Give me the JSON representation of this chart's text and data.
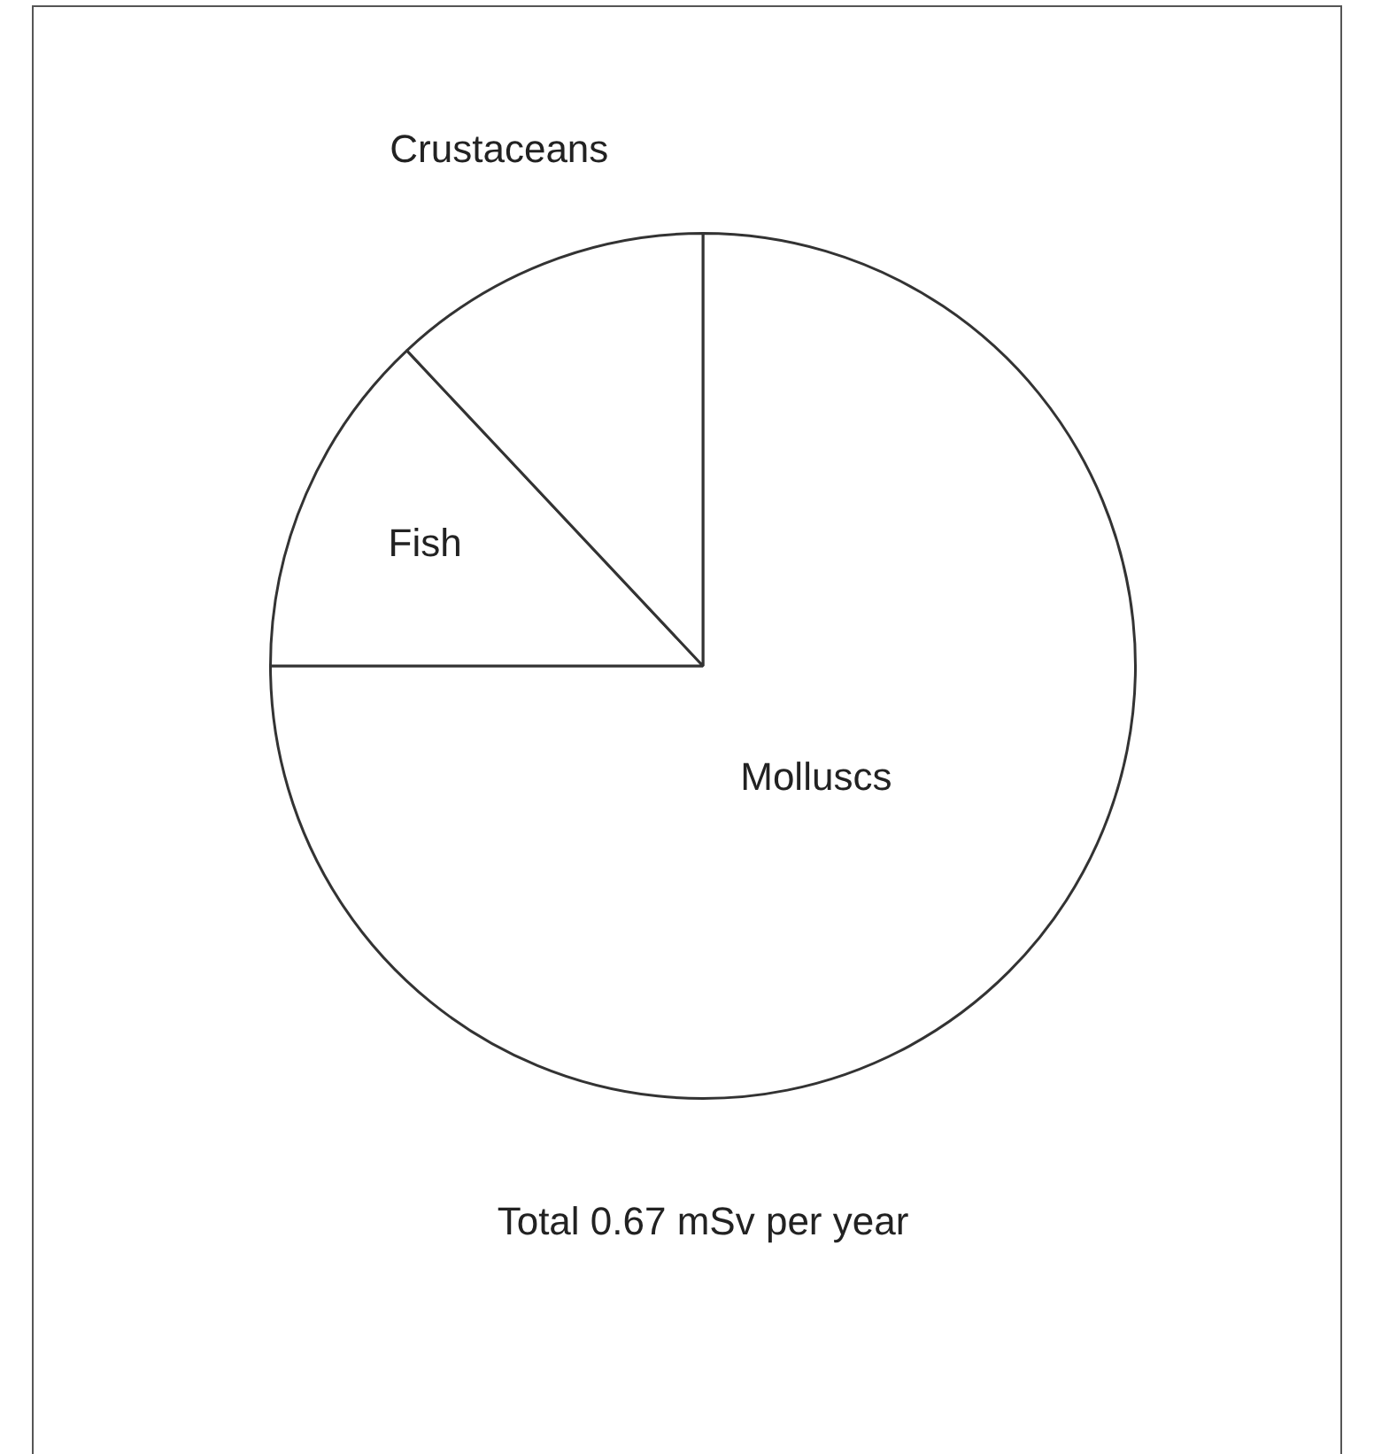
{
  "chart_data": {
    "type": "pie",
    "categories": [
      "Molluscs",
      "Fish",
      "Crustaceans"
    ],
    "values": [
      75,
      13,
      12
    ],
    "colors": [
      "#ffffff",
      "#ffffff",
      "#ffffff"
    ],
    "annotations": [
      "Total 0.67 mSv per year"
    ],
    "legend": false
  }
}
